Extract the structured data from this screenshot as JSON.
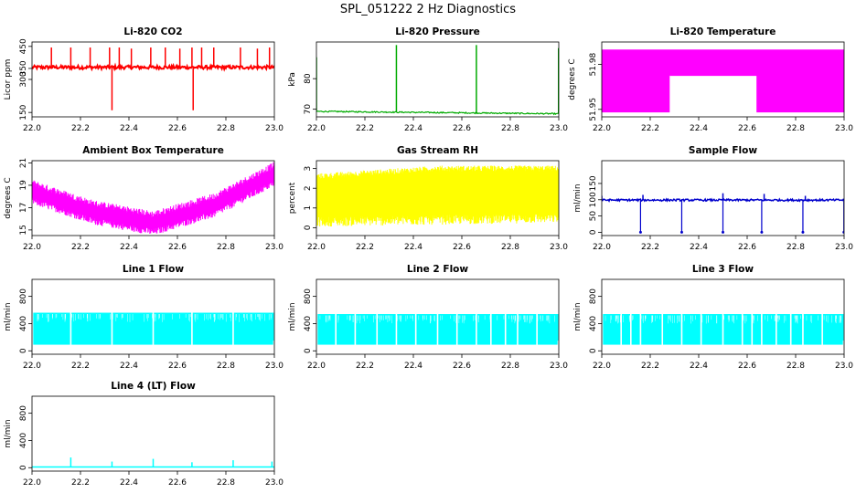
{
  "page": {
    "title": "SPL_051222  2 Hz Diagnostics"
  },
  "chart_data": [
    {
      "type": "line",
      "title": "Li-820 CO2",
      "xlabel": "",
      "ylabel": "Licor ppm",
      "xlim": [
        22.0,
        23.0
      ],
      "ylim": [
        130,
        470
      ],
      "xticks": [
        "22.0",
        "22.2",
        "22.4",
        "22.6",
        "22.8",
        "23.0"
      ],
      "yticks": [
        150,
        300,
        350,
        450
      ],
      "color": "#ff0000",
      "series": [
        {
          "name": "CO2",
          "baseline": 355,
          "noise": 8,
          "spikes": [
            [
              22.08,
              445
            ],
            [
              22.16,
              445
            ],
            [
              22.24,
              445
            ],
            [
              22.32,
              445
            ],
            [
              22.33,
              160
            ],
            [
              22.36,
              445
            ],
            [
              22.41,
              440
            ],
            [
              22.49,
              445
            ],
            [
              22.55,
              445
            ],
            [
              22.61,
              440
            ],
            [
              22.66,
              445
            ],
            [
              22.665,
              160
            ],
            [
              22.7,
              445
            ],
            [
              22.75,
              445
            ],
            [
              22.86,
              445
            ],
            [
              22.93,
              440
            ],
            [
              22.98,
              445
            ]
          ]
        }
      ]
    },
    {
      "type": "line",
      "title": "Li-820 Pressure",
      "xlabel": "",
      "ylabel": "kPa",
      "xlim": [
        22.0,
        23.0
      ],
      "ylim": [
        67.5,
        92
      ],
      "xticks": [
        "22.0",
        "22.2",
        "22.4",
        "22.6",
        "22.8",
        "23.0"
      ],
      "yticks": [
        70,
        80
      ],
      "color": "#00aa00",
      "series": [
        {
          "name": "Pressure",
          "baseline": [
            69.3,
            68.5
          ],
          "noise": 0.2,
          "spikes": [
            [
              22.0,
              87
            ],
            [
              22.33,
              91
            ],
            [
              22.66,
              91
            ],
            [
              22.999,
              90
            ]
          ]
        }
      ]
    },
    {
      "type": "line",
      "title": "Li-820 Temperature",
      "xlabel": "",
      "ylabel": "degrees C",
      "xlim": [
        22.0,
        23.0
      ],
      "ylim": [
        51.945,
        51.995
      ],
      "xticks": [
        "22.0",
        "22.2",
        "22.4",
        "22.6",
        "22.8",
        "23.0"
      ],
      "yticks": [
        51.95,
        51.98
      ],
      "color": "#ff00ff",
      "series": [
        {
          "name": "Temperature",
          "levels": [
            51.948,
            51.973,
            51.99
          ]
        }
      ]
    },
    {
      "type": "line",
      "title": "Ambient Box Temperature",
      "xlabel": "",
      "ylabel": "degrees C",
      "xlim": [
        22.0,
        23.0
      ],
      "ylim": [
        14.5,
        21.2
      ],
      "xticks": [
        "22.0",
        "22.2",
        "22.4",
        "22.6",
        "22.8",
        "23.0"
      ],
      "yticks": [
        15,
        17,
        19,
        21
      ],
      "color": "#ff00ff",
      "series": [
        {
          "name": "Box Temp",
          "profile": [
            [
              22.0,
              18.4
            ],
            [
              22.25,
              16.6
            ],
            [
              22.5,
              15.6
            ],
            [
              22.75,
              17.2
            ],
            [
              23.0,
              20.0
            ]
          ],
          "band": 1.6
        }
      ]
    },
    {
      "type": "line",
      "title": "Gas Stream RH",
      "xlabel": "",
      "ylabel": "percent",
      "xlim": [
        22.0,
        23.0
      ],
      "ylim": [
        -0.4,
        3.4
      ],
      "xticks": [
        "22.0",
        "22.2",
        "22.4",
        "22.6",
        "22.8",
        "23.0"
      ],
      "yticks": [
        0,
        1,
        2,
        3
      ],
      "color": "#ffff00",
      "series": [
        {
          "name": "RH",
          "top": [
            2.6,
            3.0
          ],
          "bottom": [
            0.2,
            0.4
          ]
        }
      ]
    },
    {
      "type": "line",
      "title": "Sample Flow",
      "xlabel": "",
      "ylabel": "ml/min",
      "xlim": [
        22.0,
        23.0
      ],
      "ylim": [
        -10,
        220
      ],
      "xticks": [
        "22.0",
        "22.2",
        "22.4",
        "22.6",
        "22.8",
        "23.0"
      ],
      "yticks": [
        0,
        50,
        100,
        150
      ],
      "color": "#0000cc",
      "series": [
        {
          "name": "Sample Flow",
          "baseline": 99,
          "noise": 3,
          "dips": [
            22.16,
            22.33,
            22.5,
            22.66,
            22.83,
            22.999
          ],
          "spikes": [
            [
              22.0,
              112
            ],
            [
              22.17,
              115
            ],
            [
              22.5,
              120
            ],
            [
              22.67,
              118
            ],
            [
              22.84,
              112
            ]
          ]
        }
      ]
    },
    {
      "type": "area",
      "title": "Line 1 Flow",
      "xlabel": "",
      "ylabel": "ml/min",
      "xlim": [
        22.0,
        23.0
      ],
      "ylim": [
        -50,
        1050
      ],
      "xticks": [
        "22.0",
        "22.2",
        "22.4",
        "22.6",
        "22.8",
        "23.0"
      ],
      "yticks": [
        0,
        400,
        800
      ],
      "color": "#00ffff",
      "series": [
        {
          "name": "Line 1",
          "low": 90,
          "high": 560,
          "gaps": [
            22.16,
            22.33,
            22.5,
            22.66,
            22.83
          ]
        }
      ]
    },
    {
      "type": "area",
      "title": "Line 2 Flow",
      "xlabel": "",
      "ylabel": "ml/min",
      "xlim": [
        22.0,
        23.0
      ],
      "ylim": [
        -50,
        1050
      ],
      "xticks": [
        "22.0",
        "22.2",
        "22.4",
        "22.6",
        "22.8",
        "23.0"
      ],
      "yticks": [
        0,
        400,
        800
      ],
      "color": "#00ffff",
      "series": [
        {
          "name": "Line 2",
          "low": 90,
          "high": 540,
          "gaps": [
            22.08,
            22.16,
            22.25,
            22.33,
            22.41,
            22.5,
            22.58,
            22.66,
            22.72,
            22.78,
            22.83,
            22.91
          ]
        }
      ]
    },
    {
      "type": "area",
      "title": "Line 3 Flow",
      "xlabel": "",
      "ylabel": "ml/min",
      "xlim": [
        22.0,
        23.0
      ],
      "ylim": [
        -50,
        1050
      ],
      "xticks": [
        "22.0",
        "22.2",
        "22.4",
        "22.6",
        "22.8",
        "23.0"
      ],
      "yticks": [
        0,
        400,
        800
      ],
      "color": "#00ffff",
      "series": [
        {
          "name": "Line 3",
          "low": 90,
          "high": 540,
          "gaps": [
            22.08,
            22.12,
            22.16,
            22.25,
            22.33,
            22.41,
            22.5,
            22.58,
            22.62,
            22.66,
            22.72,
            22.78,
            22.83,
            22.91
          ]
        }
      ]
    },
    {
      "type": "line",
      "title": "Line 4 (LT) Flow",
      "xlabel": "",
      "ylabel": "ml/min",
      "xlim": [
        22.0,
        23.0
      ],
      "ylim": [
        -50,
        1050
      ],
      "xticks": [
        "22.0",
        "22.2",
        "22.4",
        "22.6",
        "22.8",
        "23.0"
      ],
      "yticks": [
        0,
        400,
        800
      ],
      "color": "#00ffff",
      "series": [
        {
          "name": "Line 4",
          "baseline": 10,
          "spikes": [
            [
              22.16,
              150
            ],
            [
              22.33,
              90
            ],
            [
              22.5,
              130
            ],
            [
              22.66,
              80
            ],
            [
              22.83,
              110
            ],
            [
              22.99,
              90
            ]
          ]
        }
      ]
    }
  ]
}
